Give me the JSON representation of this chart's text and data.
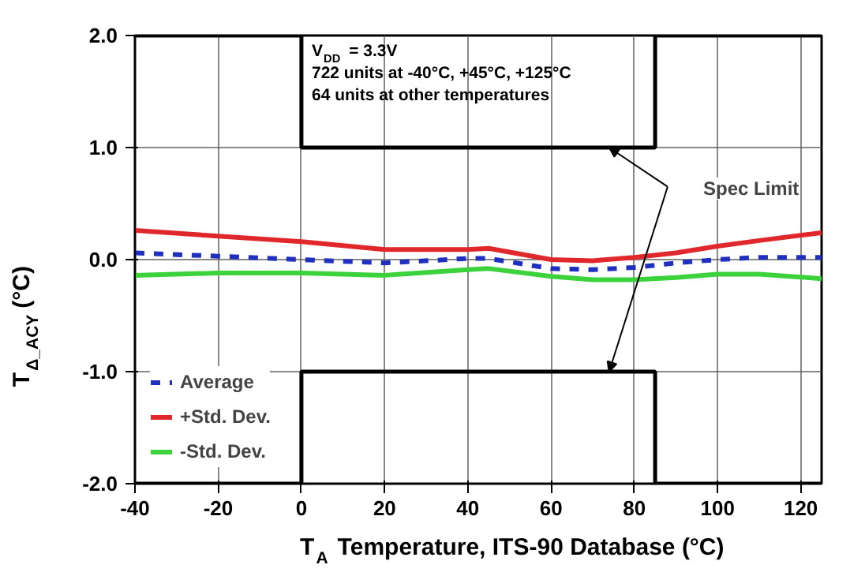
{
  "chart_data": {
    "type": "line",
    "xlabel": "T$_{A}$ Temperature, ITS-90 Database (°C)",
    "ylabel": "T$_{Δ_ACY}$ (°C)",
    "x": [
      -40,
      -20,
      0,
      20,
      40,
      45,
      60,
      70,
      80,
      90,
      100,
      110,
      125
    ],
    "series": [
      {
        "name": "Average",
        "color": "#1f2fbf",
        "line_style": "dashed",
        "values": [
          0.06,
          0.03,
          0.0,
          -0.03,
          0.01,
          0.01,
          -0.08,
          -0.09,
          -0.07,
          -0.03,
          0.0,
          0.02,
          0.02
        ]
      },
      {
        "name": "+Std. Dev.",
        "color": "#e0282c",
        "values": [
          0.26,
          0.21,
          0.16,
          0.09,
          0.09,
          0.1,
          0.0,
          -0.01,
          0.02,
          0.06,
          0.12,
          0.17,
          0.24
        ]
      },
      {
        "name": "-Std. Dev.",
        "color": "#3cd23c",
        "values": [
          -0.14,
          -0.12,
          -0.12,
          -0.14,
          -0.09,
          -0.08,
          -0.15,
          -0.18,
          -0.18,
          -0.16,
          -0.13,
          -0.13,
          -0.17
        ]
      },
      {
        "type": "step",
        "color": "#000000",
        "x": [
          -40,
          0,
          85,
          125
        ],
        "values": [
          2.0,
          1.0,
          2.0,
          2.0
        ]
      },
      {
        "type": "step",
        "color": "#000000",
        "x": [
          -40,
          0,
          85,
          125
        ],
        "values": [
          -2.0,
          -1.0,
          -2.0,
          -2.0
        ]
      }
    ],
    "xlim": [
      -40,
      125
    ],
    "xticks": [
      -40,
      -20,
      0,
      20,
      40,
      60,
      80,
      100,
      120
    ],
    "ylim": [
      -2.0,
      2.0
    ],
    "yticks": [
      {
        "value": -2,
        "label": "-2.0"
      },
      {
        "value": -1,
        "label": "-1.0"
      },
      {
        "value": 0,
        "label": "0.0"
      },
      {
        "value": 1,
        "label": "1.0"
      },
      {
        "value": 2,
        "label": "2.0"
      }
    ],
    "annotations": [
      "V$_{DD}$ = 3.3V",
      "722 units at -40°C, +45°C, +125°C",
      "64 units at other temperatures",
      "Spec Limit"
    ],
    "grid": true,
    "legend": "bottom left",
    "line_style": "solid"
  }
}
